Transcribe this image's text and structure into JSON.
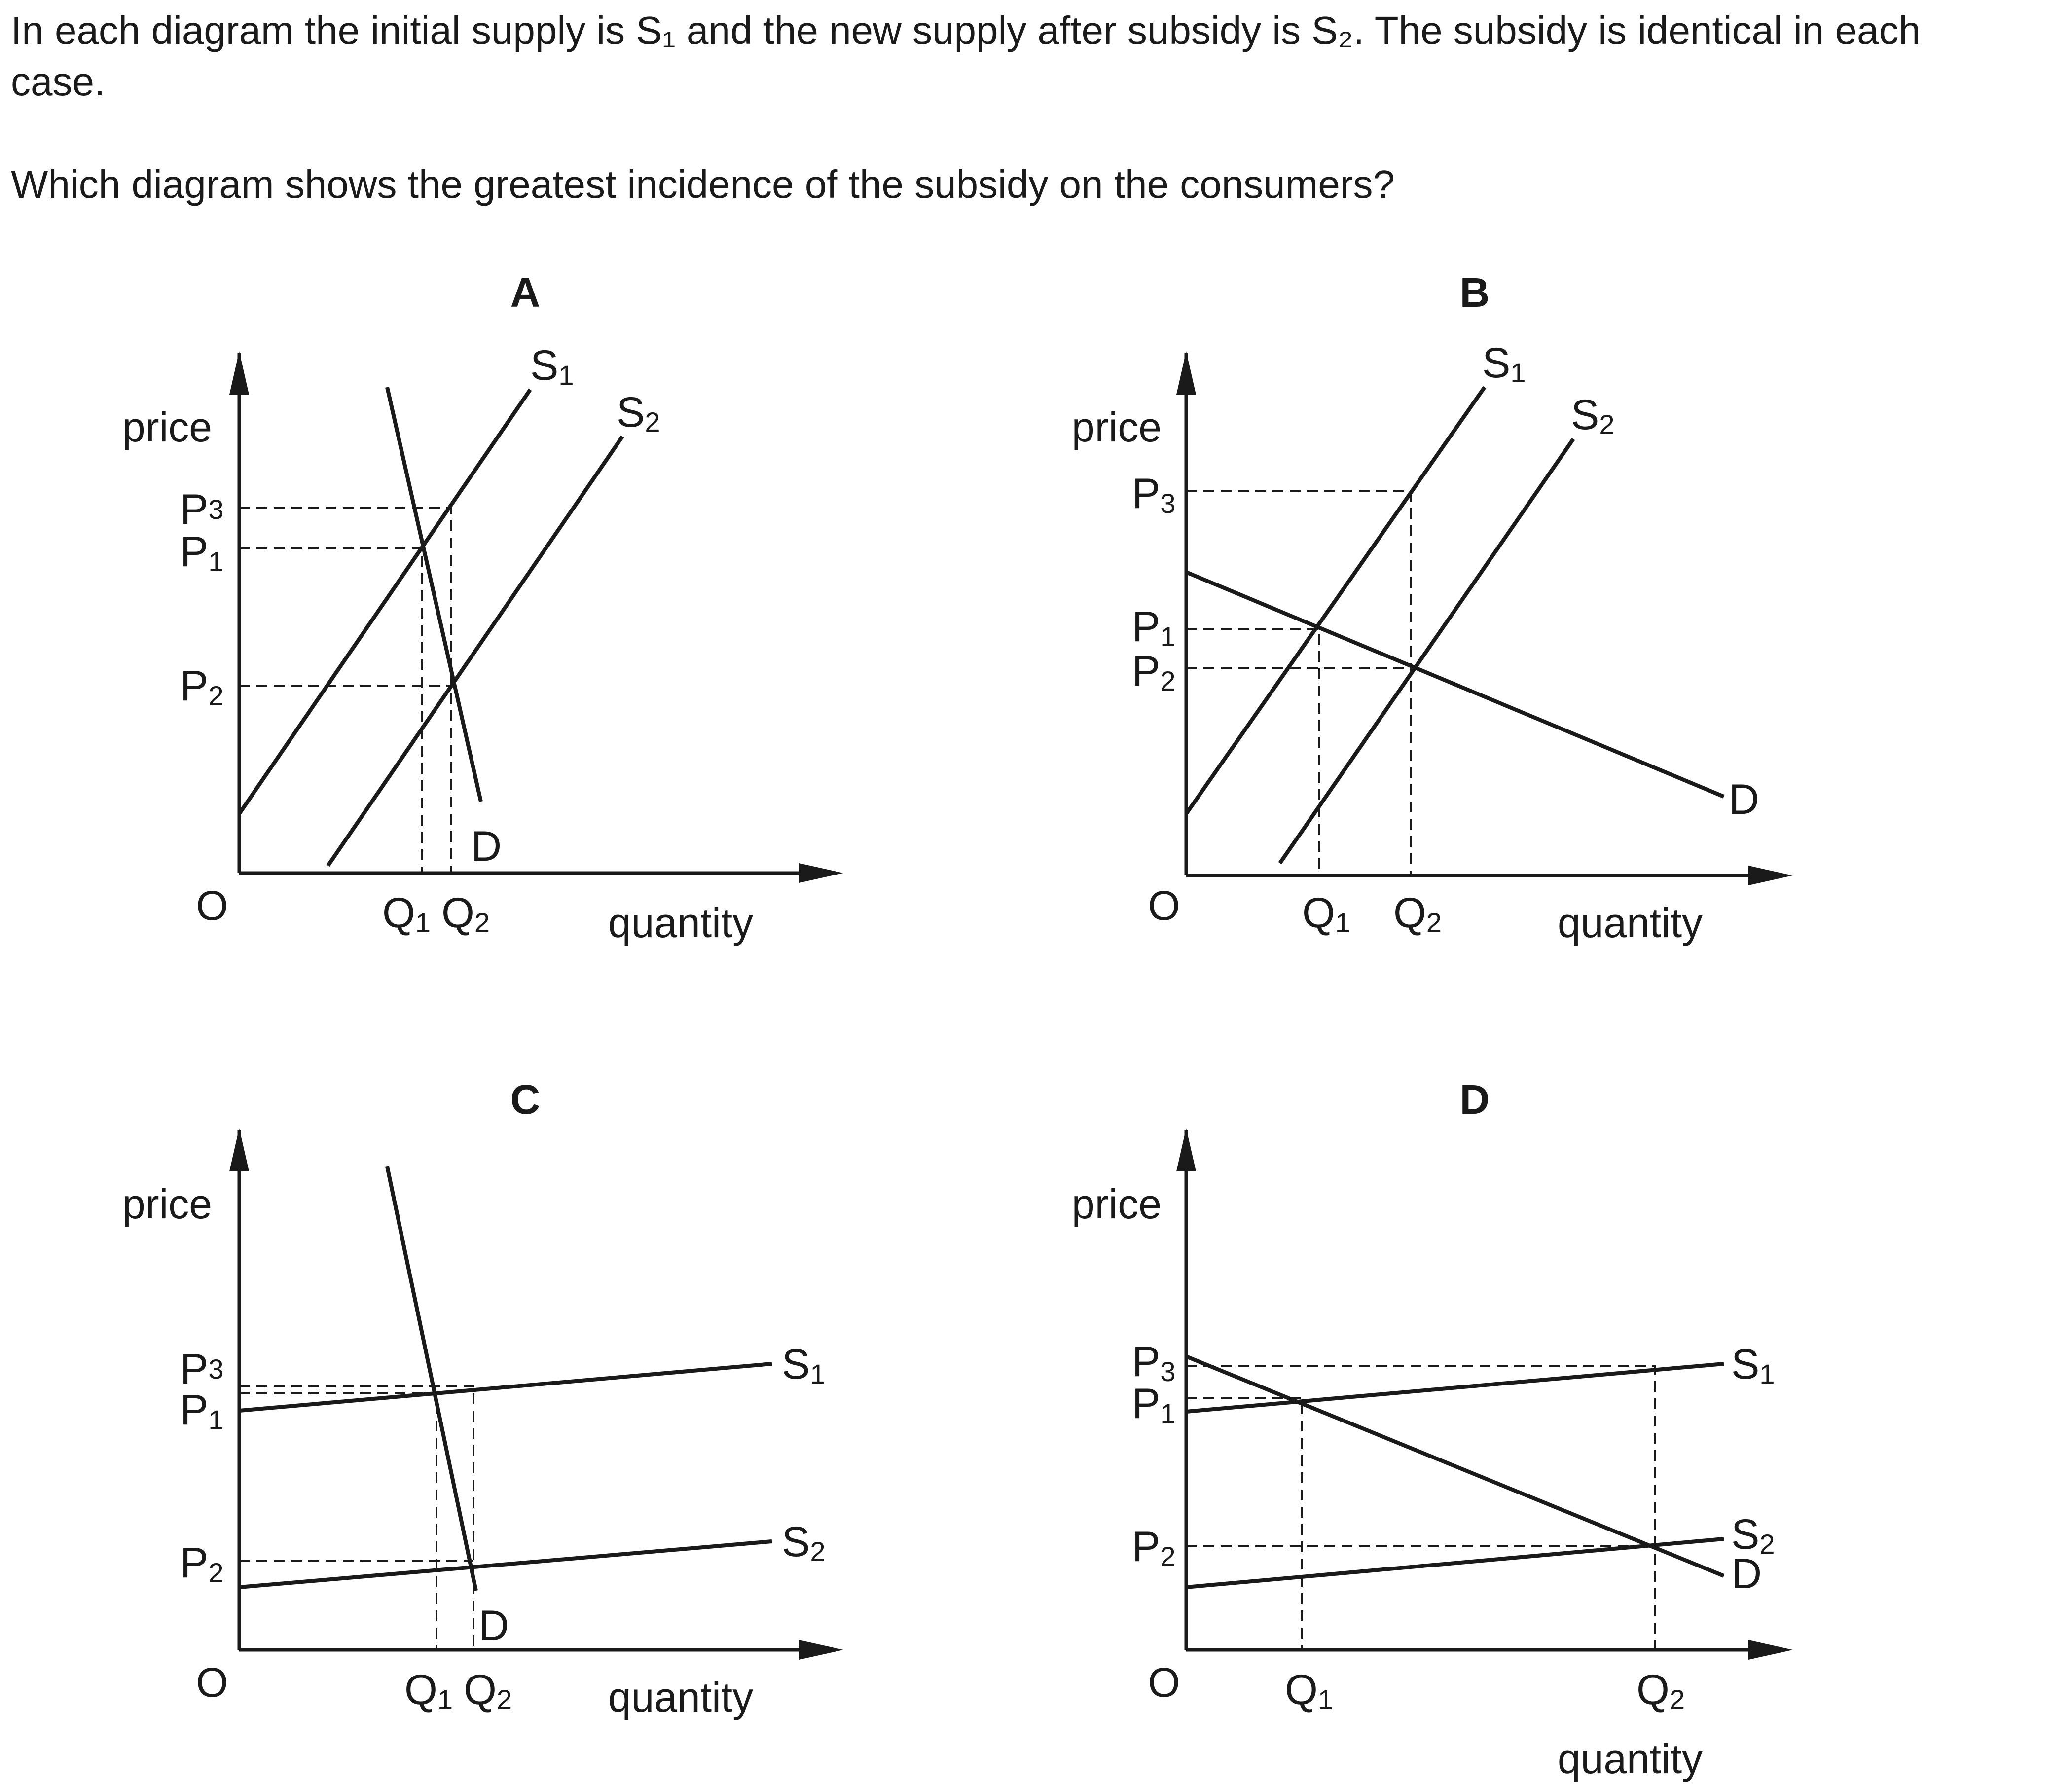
{
  "question": {
    "line1": "In each diagram the initial supply is S₁ and the new supply after subsidy is S₂. The subsidy is identical in each case.",
    "line2": "Which diagram shows the greatest incidence of the subsidy on the consumers?"
  },
  "diagrams": [
    {
      "label": "A",
      "ylabel": "price",
      "xlabel": "quantity",
      "origin": "O"
    },
    {
      "label": "B",
      "ylabel": "price",
      "xlabel": "quantity",
      "origin": "O"
    },
    {
      "label": "C",
      "ylabel": "price",
      "xlabel": "quantity",
      "origin": "O"
    },
    {
      "label": "D",
      "ylabel": "price",
      "xlabel": "quantity",
      "origin": "O"
    }
  ],
  "symbols": {
    "P": "P",
    "Q": "Q",
    "S": "S",
    "D": "D",
    "sub1": "1",
    "sub2": "2",
    "sub3": "3"
  }
}
